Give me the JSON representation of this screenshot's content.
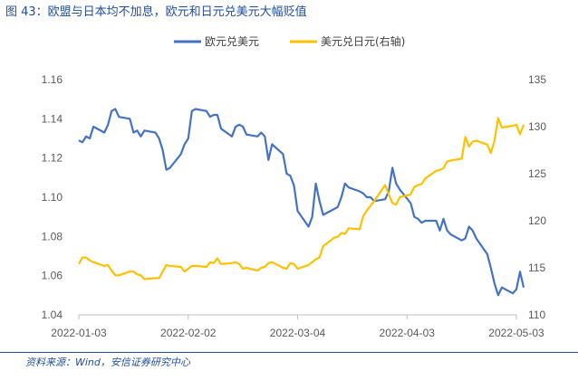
{
  "figure": {
    "title": "图 43：欧盟与日本均不加息，欧元和日元兑美元大幅贬值",
    "source": "资料来源：Wind，安信证券研究中心"
  },
  "colors": {
    "eur": "#4472c4",
    "jpy": "#ffc000",
    "accent": "#1f4e9c"
  },
  "chart_data": {
    "type": "line",
    "title": "",
    "legend": {
      "position": "top",
      "entries": [
        "欧元兑美元",
        "美元兑日元(右轴)"
      ]
    },
    "x_ticks": [
      "2022-01-03",
      "2022-02-02",
      "2022-03-04",
      "2022-04-03",
      "2022-05-03"
    ],
    "x_range": [
      "2022-01-03",
      "2022-05-03"
    ],
    "y_left": {
      "lim": [
        1.04,
        1.16
      ],
      "ticks": [
        "1.04",
        "1.06",
        "1.08",
        "1.10",
        "1.12",
        "1.14",
        "1.16"
      ]
    },
    "y_right": {
      "lim": [
        110,
        135
      ],
      "ticks": [
        "110",
        "115",
        "120",
        "125",
        "130",
        "135"
      ]
    },
    "grid": false,
    "series": [
      {
        "name": "欧元兑美元",
        "axis": "left",
        "points": [
          [
            "2022-01-03",
            1.129
          ],
          [
            "2022-01-04",
            1.128
          ],
          [
            "2022-01-05",
            1.131
          ],
          [
            "2022-01-06",
            1.13
          ],
          [
            "2022-01-07",
            1.136
          ],
          [
            "2022-01-10",
            1.133
          ],
          [
            "2022-01-11",
            1.137
          ],
          [
            "2022-01-12",
            1.144
          ],
          [
            "2022-01-13",
            1.145
          ],
          [
            "2022-01-14",
            1.141
          ],
          [
            "2022-01-17",
            1.14
          ],
          [
            "2022-01-18",
            1.133
          ],
          [
            "2022-01-19",
            1.134
          ],
          [
            "2022-01-20",
            1.131
          ],
          [
            "2022-01-21",
            1.134
          ],
          [
            "2022-01-24",
            1.133
          ],
          [
            "2022-01-25",
            1.13
          ],
          [
            "2022-01-26",
            1.124
          ],
          [
            "2022-01-27",
            1.114
          ],
          [
            "2022-01-28",
            1.115
          ],
          [
            "2022-01-31",
            1.122
          ],
          [
            "2022-02-01",
            1.127
          ],
          [
            "2022-02-02",
            1.13
          ],
          [
            "2022-02-03",
            1.144
          ],
          [
            "2022-02-04",
            1.145
          ],
          [
            "2022-02-07",
            1.144
          ],
          [
            "2022-02-08",
            1.141
          ],
          [
            "2022-02-09",
            1.142
          ],
          [
            "2022-02-10",
            1.142
          ],
          [
            "2022-02-11",
            1.135
          ],
          [
            "2022-02-14",
            1.131
          ],
          [
            "2022-02-15",
            1.136
          ],
          [
            "2022-02-16",
            1.137
          ],
          [
            "2022-02-17",
            1.136
          ],
          [
            "2022-02-18",
            1.132
          ],
          [
            "2022-02-21",
            1.131
          ],
          [
            "2022-02-22",
            1.133
          ],
          [
            "2022-02-23",
            1.131
          ],
          [
            "2022-02-24",
            1.119
          ],
          [
            "2022-02-25",
            1.127
          ],
          [
            "2022-02-28",
            1.122
          ],
          [
            "2022-03-01",
            1.112
          ],
          [
            "2022-03-02",
            1.111
          ],
          [
            "2022-03-03",
            1.106
          ],
          [
            "2022-03-04",
            1.093
          ],
          [
            "2022-03-07",
            1.085
          ],
          [
            "2022-03-08",
            1.09
          ],
          [
            "2022-03-09",
            1.107
          ],
          [
            "2022-03-10",
            1.098
          ],
          [
            "2022-03-11",
            1.091
          ],
          [
            "2022-03-14",
            1.094
          ],
          [
            "2022-03-15",
            1.095
          ],
          [
            "2022-03-16",
            1.1
          ],
          [
            "2022-03-17",
            1.107
          ],
          [
            "2022-03-18",
            1.105
          ],
          [
            "2022-03-21",
            1.103
          ],
          [
            "2022-03-22",
            1.102
          ],
          [
            "2022-03-23",
            1.1
          ],
          [
            "2022-03-24",
            1.1
          ],
          [
            "2022-03-25",
            1.098
          ],
          [
            "2022-03-28",
            1.099
          ],
          [
            "2022-03-29",
            1.103
          ],
          [
            "2022-03-30",
            1.115
          ],
          [
            "2022-03-31",
            1.107
          ],
          [
            "2022-04-01",
            1.104
          ],
          [
            "2022-04-04",
            1.097
          ],
          [
            "2022-04-05",
            1.09
          ],
          [
            "2022-04-06",
            1.089
          ],
          [
            "2022-04-07",
            1.087
          ],
          [
            "2022-04-08",
            1.088
          ],
          [
            "2022-04-11",
            1.088
          ],
          [
            "2022-04-12",
            1.083
          ],
          [
            "2022-04-13",
            1.089
          ],
          [
            "2022-04-14",
            1.083
          ],
          [
            "2022-04-15",
            1.081
          ],
          [
            "2022-04-18",
            1.078
          ],
          [
            "2022-04-19",
            1.079
          ],
          [
            "2022-04-20",
            1.085
          ],
          [
            "2022-04-21",
            1.083
          ],
          [
            "2022-04-22",
            1.079
          ],
          [
            "2022-04-25",
            1.071
          ],
          [
            "2022-04-26",
            1.064
          ],
          [
            "2022-04-27",
            1.056
          ],
          [
            "2022-04-28",
            1.05
          ],
          [
            "2022-04-29",
            1.054
          ],
          [
            "2022-05-02",
            1.051
          ],
          [
            "2022-05-03",
            1.053
          ],
          [
            "2022-05-04",
            1.062
          ],
          [
            "2022-05-05",
            1.054
          ]
        ]
      },
      {
        "name": "美元兑日元(右轴)",
        "axis": "right",
        "points": [
          [
            "2022-01-03",
            115.4
          ],
          [
            "2022-01-04",
            116.1
          ],
          [
            "2022-01-05",
            116.1
          ],
          [
            "2022-01-06",
            115.8
          ],
          [
            "2022-01-07",
            115.6
          ],
          [
            "2022-01-10",
            115.2
          ],
          [
            "2022-01-11",
            115.3
          ],
          [
            "2022-01-12",
            114.7
          ],
          [
            "2022-01-13",
            114.2
          ],
          [
            "2022-01-14",
            114.2
          ],
          [
            "2022-01-17",
            114.6
          ],
          [
            "2022-01-18",
            114.6
          ],
          [
            "2022-01-19",
            114.3
          ],
          [
            "2022-01-20",
            114.2
          ],
          [
            "2022-01-21",
            113.8
          ],
          [
            "2022-01-24",
            113.9
          ],
          [
            "2022-01-25",
            113.9
          ],
          [
            "2022-01-26",
            114.6
          ],
          [
            "2022-01-27",
            115.3
          ],
          [
            "2022-01-28",
            115.2
          ],
          [
            "2022-01-31",
            115.1
          ],
          [
            "2022-02-01",
            114.6
          ],
          [
            "2022-02-02",
            114.9
          ],
          [
            "2022-02-03",
            115.2
          ],
          [
            "2022-02-04",
            115.2
          ],
          [
            "2022-02-07",
            115.1
          ],
          [
            "2022-02-08",
            115.6
          ],
          [
            "2022-02-09",
            115.5
          ],
          [
            "2022-02-10",
            116.0
          ],
          [
            "2022-02-11",
            115.4
          ],
          [
            "2022-02-14",
            115.5
          ],
          [
            "2022-02-15",
            115.6
          ],
          [
            "2022-02-16",
            115.4
          ],
          [
            "2022-02-17",
            114.9
          ],
          [
            "2022-02-18",
            115.0
          ],
          [
            "2022-02-21",
            114.7
          ],
          [
            "2022-02-22",
            115.0
          ],
          [
            "2022-02-23",
            115.1
          ],
          [
            "2022-02-24",
            115.5
          ],
          [
            "2022-02-25",
            115.6
          ],
          [
            "2022-02-28",
            115.0
          ],
          [
            "2022-03-01",
            114.9
          ],
          [
            "2022-03-02",
            115.5
          ],
          [
            "2022-03-03",
            115.4
          ],
          [
            "2022-03-04",
            114.9
          ],
          [
            "2022-03-07",
            115.3
          ],
          [
            "2022-03-08",
            115.6
          ],
          [
            "2022-03-09",
            115.9
          ],
          [
            "2022-03-10",
            116.1
          ],
          [
            "2022-03-11",
            117.3
          ],
          [
            "2022-03-14",
            118.2
          ],
          [
            "2022-03-15",
            118.3
          ],
          [
            "2022-03-16",
            118.7
          ],
          [
            "2022-03-17",
            118.6
          ],
          [
            "2022-03-18",
            119.2
          ],
          [
            "2022-03-21",
            119.1
          ],
          [
            "2022-03-22",
            120.5
          ],
          [
            "2022-03-23",
            121.1
          ],
          [
            "2022-03-24",
            121.6
          ],
          [
            "2022-03-25",
            122.1
          ],
          [
            "2022-03-28",
            123.8
          ],
          [
            "2022-03-29",
            122.8
          ],
          [
            "2022-03-30",
            121.9
          ],
          [
            "2022-03-31",
            121.7
          ],
          [
            "2022-04-01",
            122.5
          ],
          [
            "2022-04-04",
            122.8
          ],
          [
            "2022-04-05",
            123.6
          ],
          [
            "2022-04-06",
            123.8
          ],
          [
            "2022-04-07",
            123.9
          ],
          [
            "2022-04-08",
            124.5
          ],
          [
            "2022-04-11",
            125.3
          ],
          [
            "2022-04-12",
            125.4
          ],
          [
            "2022-04-13",
            125.6
          ],
          [
            "2022-04-14",
            126.3
          ],
          [
            "2022-04-15",
            126.4
          ],
          [
            "2022-04-18",
            126.6
          ],
          [
            "2022-04-19",
            128.9
          ],
          [
            "2022-04-20",
            127.9
          ],
          [
            "2022-04-21",
            128.4
          ],
          [
            "2022-04-22",
            128.5
          ],
          [
            "2022-04-25",
            128.1
          ],
          [
            "2022-04-26",
            127.2
          ],
          [
            "2022-04-27",
            128.5
          ],
          [
            "2022-04-28",
            130.9
          ],
          [
            "2022-04-29",
            129.9
          ],
          [
            "2022-05-02",
            130.1
          ],
          [
            "2022-05-03",
            130.2
          ],
          [
            "2022-05-04",
            129.2
          ],
          [
            "2022-05-05",
            130.2
          ]
        ]
      }
    ]
  }
}
